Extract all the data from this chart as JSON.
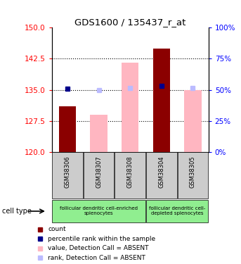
{
  "title": "GDS1600 / 135437_r_at",
  "samples": [
    "GSM38306",
    "GSM38307",
    "GSM38308",
    "GSM38304",
    "GSM38305"
  ],
  "ylim_left": [
    120,
    150
  ],
  "ylim_right": [
    0,
    100
  ],
  "yticks_left": [
    120,
    127.5,
    135,
    142.5,
    150
  ],
  "yticks_right": [
    0,
    25,
    50,
    75,
    100
  ],
  "bar_values": [
    131.0,
    null,
    null,
    145.0,
    null
  ],
  "absent_bar_values": [
    null,
    129.0,
    141.5,
    null,
    135.0
  ],
  "absent_bar_color": "#FFB6C1",
  "dark_bar_color": "#8B0000",
  "rank_values": [
    135.2,
    null,
    null,
    136.0,
    null
  ],
  "rank_color": "#00008B",
  "absent_rank_values": [
    null,
    135.0,
    135.5,
    null,
    135.5
  ],
  "absent_rank_color": "#BBBBFF",
  "bar_bottom": 120,
  "groups": [
    {
      "label": "follicular dendritic cell-enriched\nsplenocytes",
      "span": [
        0,
        3
      ],
      "color": "#90EE90"
    },
    {
      "label": "follicular dendritic cell-\ndepleted splenocytes",
      "span": [
        3,
        5
      ],
      "color": "#90EE90"
    }
  ],
  "cell_type_label": "cell type",
  "legend_items": [
    {
      "label": "count",
      "color": "#8B0000"
    },
    {
      "label": "percentile rank within the sample",
      "color": "#00008B"
    },
    {
      "label": "value, Detection Call = ABSENT",
      "color": "#FFB6C1"
    },
    {
      "label": "rank, Detection Call = ABSENT",
      "color": "#BBBBFF"
    }
  ],
  "fig_width": 3.43,
  "fig_height": 3.75,
  "dpi": 100
}
